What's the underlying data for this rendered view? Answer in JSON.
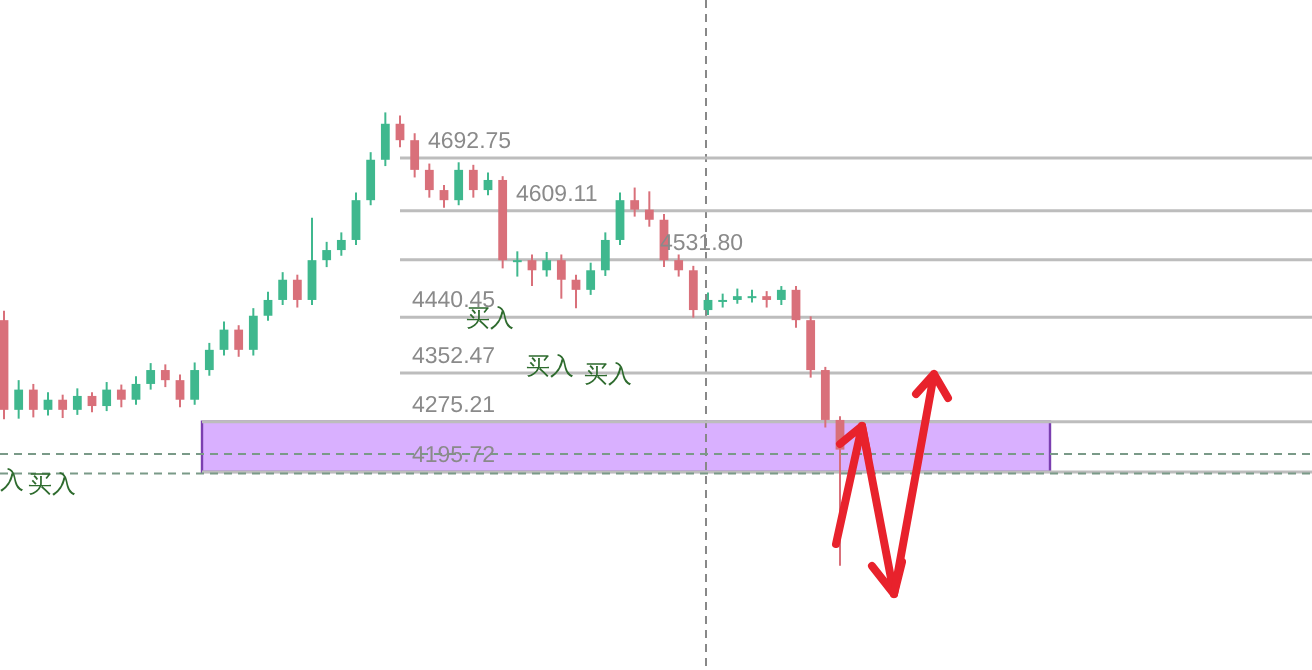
{
  "chart_data": {
    "type": "candlestick",
    "categories": [
      null,
      null,
      null,
      null,
      null,
      null,
      null,
      null,
      null,
      null,
      null,
      null,
      null,
      null,
      null,
      null,
      null,
      null,
      null,
      null,
      null,
      null,
      null,
      null,
      null,
      null,
      null,
      null,
      null,
      null,
      null,
      null,
      null,
      null,
      null,
      null,
      null,
      null,
      null,
      null,
      null,
      null,
      null,
      null,
      null,
      null,
      null,
      null,
      null,
      null,
      null,
      null,
      null,
      null,
      null,
      null,
      null,
      null
    ],
    "ohlc": [
      [
        4436,
        4451,
        4279,
        4294
      ],
      [
        4294,
        4341,
        4280,
        4326
      ],
      [
        4326,
        4335,
        4282,
        4294
      ],
      [
        4294,
        4322,
        4285,
        4310
      ],
      [
        4310,
        4318,
        4281,
        4294
      ],
      [
        4294,
        4328,
        4286,
        4316
      ],
      [
        4316,
        4322,
        4290,
        4300
      ],
      [
        4300,
        4338,
        4292,
        4326
      ],
      [
        4326,
        4334,
        4298,
        4310
      ],
      [
        4310,
        4347,
        4302,
        4335
      ],
      [
        4335,
        4368,
        4326,
        4357
      ],
      [
        4357,
        4366,
        4330,
        4341
      ],
      [
        4341,
        4350,
        4298,
        4310
      ],
      [
        4310,
        4369,
        4302,
        4357
      ],
      [
        4357,
        4400,
        4348,
        4389
      ],
      [
        4389,
        4434,
        4380,
        4421
      ],
      [
        4421,
        4428,
        4378,
        4389
      ],
      [
        4389,
        4455,
        4380,
        4443
      ],
      [
        4443,
        4481,
        4435,
        4468
      ],
      [
        4468,
        4512,
        4460,
        4500
      ],
      [
        4500,
        4508,
        4456,
        4468
      ],
      [
        4468,
        4598,
        4460,
        4531
      ],
      [
        4531,
        4560,
        4520,
        4547
      ],
      [
        4547,
        4575,
        4538,
        4563
      ],
      [
        4563,
        4638,
        4555,
        4626
      ],
      [
        4626,
        4702,
        4618,
        4690
      ],
      [
        4690,
        4765,
        4680,
        4747
      ],
      [
        4747,
        4760,
        4710,
        4721
      ],
      [
        4721,
        4732,
        4662,
        4674
      ],
      [
        4674,
        4684,
        4630,
        4642
      ],
      [
        4642,
        4650,
        4614,
        4626
      ],
      [
        4626,
        4686,
        4618,
        4674
      ],
      [
        4674,
        4682,
        4630,
        4642
      ],
      [
        4642,
        4670,
        4634,
        4658
      ],
      [
        4658,
        4664,
        4518,
        4531
      ],
      [
        4531,
        4545,
        4505,
        4531
      ],
      [
        4531,
        4540,
        4490,
        4515
      ],
      [
        4515,
        4544,
        4505,
        4531
      ],
      [
        4531,
        4540,
        4470,
        4500
      ],
      [
        4500,
        4508,
        4455,
        4484
      ],
      [
        4484,
        4527,
        4476,
        4515
      ],
      [
        4515,
        4575,
        4506,
        4563
      ],
      [
        4563,
        4638,
        4555,
        4626
      ],
      [
        4626,
        4646,
        4600,
        4611
      ],
      [
        4611,
        4640,
        4584,
        4595
      ],
      [
        4595,
        4604,
        4520,
        4531
      ],
      [
        4531,
        4540,
        4505,
        4515
      ],
      [
        4515,
        4522,
        4440,
        4452
      ],
      [
        4452,
        4480,
        4444,
        4468
      ],
      [
        4468,
        4478,
        4456,
        4468
      ],
      [
        4468,
        4486,
        4462,
        4474
      ],
      [
        4474,
        4484,
        4464,
        4474
      ],
      [
        4474,
        4482,
        4456,
        4468
      ],
      [
        4468,
        4490,
        4460,
        4484
      ],
      [
        4484,
        4490,
        4424,
        4436
      ],
      [
        4436,
        4442,
        4345,
        4357
      ],
      [
        4357,
        4362,
        4266,
        4278
      ],
      [
        4278,
        4284,
        4047,
        4231
      ]
    ],
    "ylim": [
      3882,
      4943
    ],
    "tick_labels": false,
    "ref_lines": [
      {
        "axis": "y",
        "value": 4692.75,
        "label": "4692.75",
        "color": "#bdbdbd"
      },
      {
        "axis": "y",
        "value": 4609.11,
        "label": "4609.11",
        "color": "#bdbdbd"
      },
      {
        "axis": "y",
        "value": 4531.8,
        "label": "4531.80",
        "color": "#bdbdbd"
      },
      {
        "axis": "y",
        "value": 4440.45,
        "label": "4440.45",
        "color": "#bdbdbd"
      },
      {
        "axis": "y",
        "value": 4352.47,
        "label": "4352.47",
        "color": "#bdbdbd"
      },
      {
        "axis": "y",
        "value": 4275.21,
        "label": "4275.21",
        "color": "#bdbdbd"
      },
      {
        "axis": "y",
        "value": 4195.72,
        "label": "4195.72",
        "color": "#bdbdbd"
      },
      {
        "axis": "y",
        "value": 4224,
        "color": "#7a9a88",
        "line_style": "dashed"
      },
      {
        "axis": "y",
        "value": 4193,
        "color": "#7a9a88",
        "line_style": "dashed"
      }
    ],
    "bands": [
      {
        "axis": "y",
        "from": 4195.72,
        "to": 4275.21,
        "color": "#d9b0ff"
      }
    ],
    "annotations": [
      "入",
      "买入",
      "买入",
      "买入",
      "买入"
    ]
  }
}
